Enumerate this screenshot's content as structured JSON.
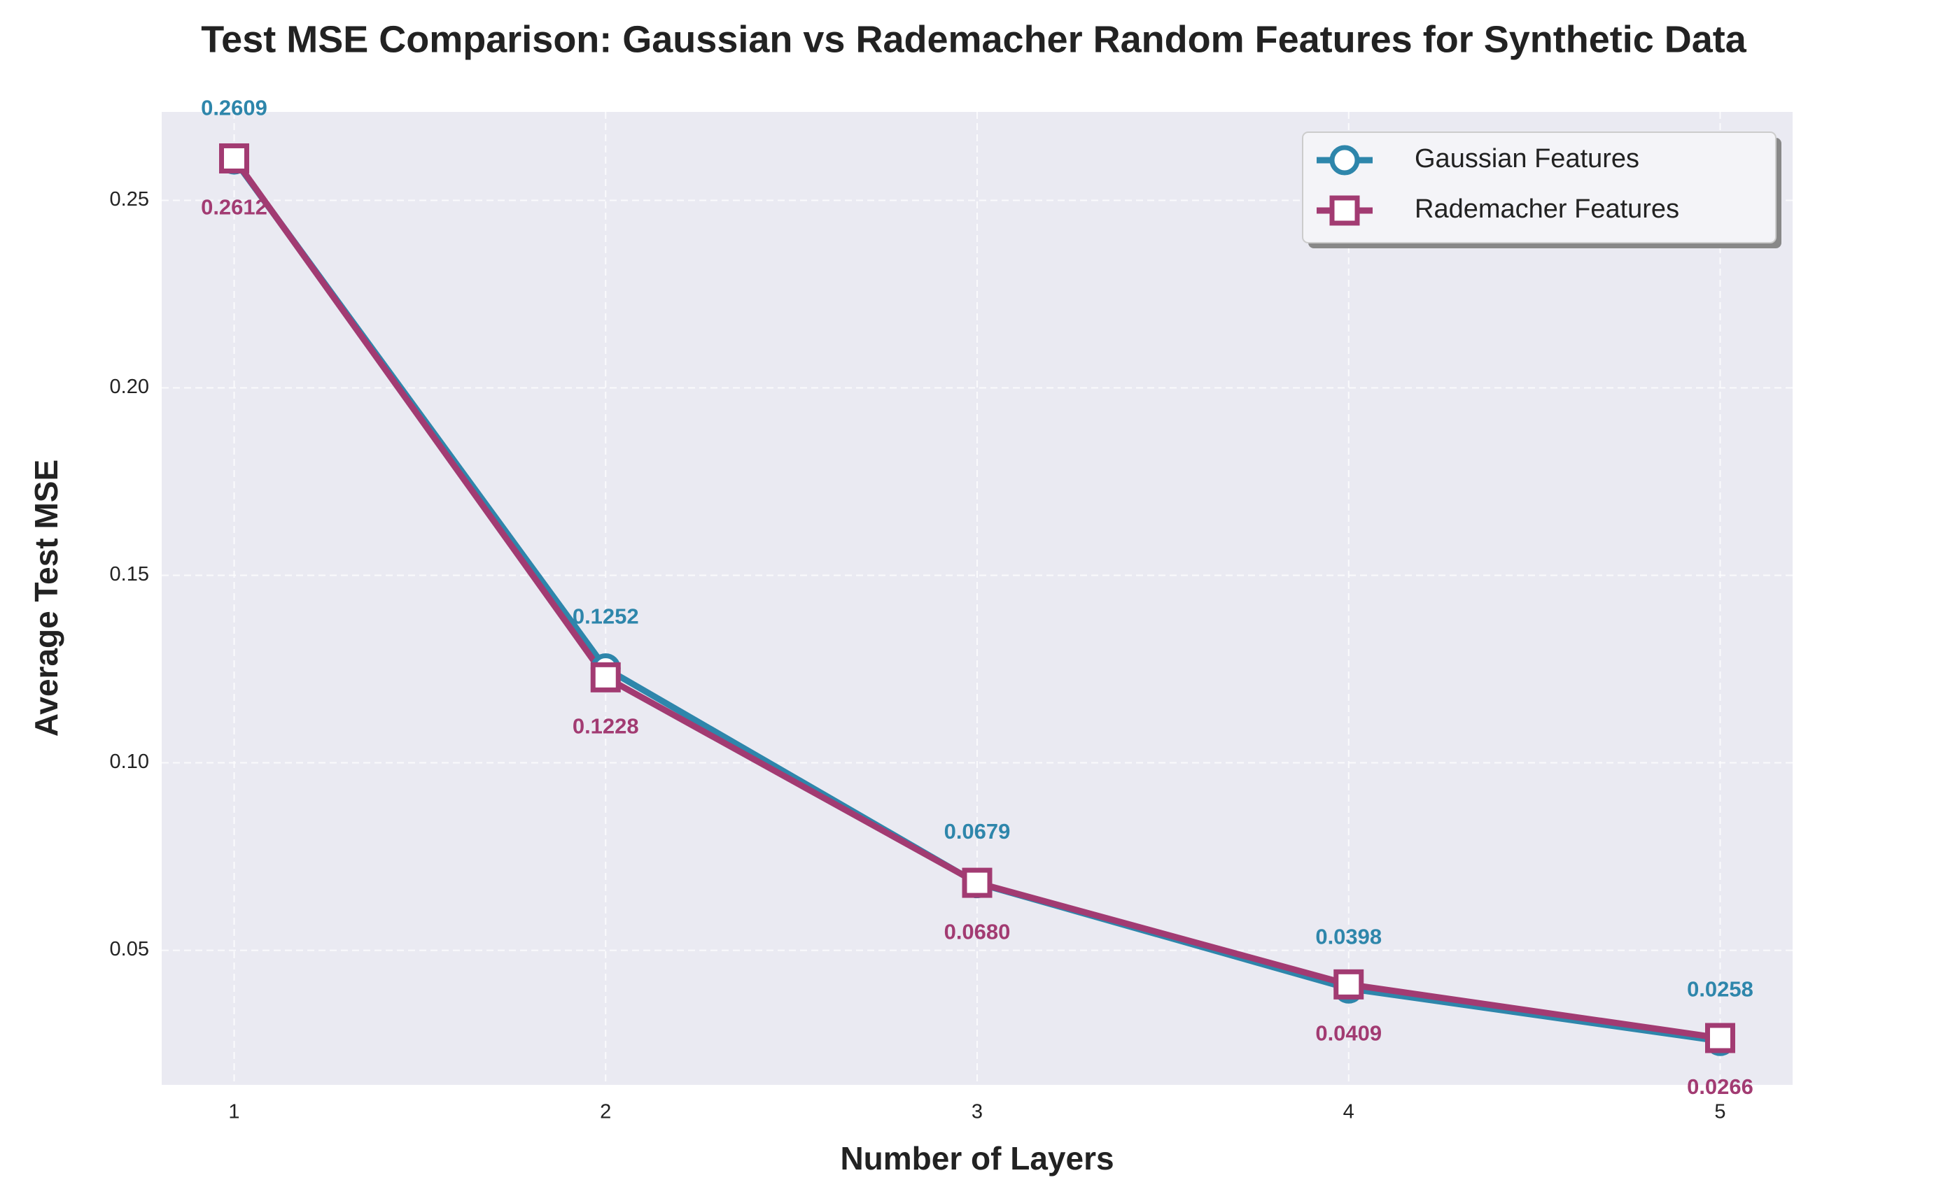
{
  "chart_data": {
    "type": "line",
    "title": "Test MSE Comparison: Gaussian vs Rademacher Random Features for Synthetic Data",
    "xlabel": "Number of Layers",
    "ylabel": "Average Test MSE",
    "x": [
      1,
      2,
      3,
      4,
      5
    ],
    "series": [
      {
        "name": "Gaussian Features",
        "color": "#2e86ab",
        "marker": "circle",
        "values": [
          0.2609,
          0.1252,
          0.0679,
          0.0398,
          0.0258
        ],
        "value_labels": [
          "0.2609",
          "0.1252",
          "0.0679",
          "0.0398",
          "0.0258"
        ],
        "label_position": "above"
      },
      {
        "name": "Rademacher Features",
        "color": "#a23b72",
        "marker": "square",
        "values": [
          0.2612,
          0.1228,
          0.068,
          0.0409,
          0.0266
        ],
        "value_labels": [
          "0.2612",
          "0.1228",
          "0.0680",
          "0.0409",
          "0.0266"
        ],
        "label_position": "below"
      }
    ],
    "xlim": [
      0.805,
      5.195
    ],
    "xticks": [
      1,
      2,
      3,
      4,
      5
    ],
    "ylim": [
      0.0141,
      0.2736
    ],
    "yticks": [
      {
        "value": 0.05,
        "label": "0.05"
      },
      {
        "value": 0.1,
        "label": "0.10"
      },
      {
        "value": 0.15,
        "label": "0.15"
      },
      {
        "value": 0.2,
        "label": "0.20"
      },
      {
        "value": 0.25,
        "label": "0.25"
      }
    ],
    "grid": true,
    "legend": "upper right"
  }
}
